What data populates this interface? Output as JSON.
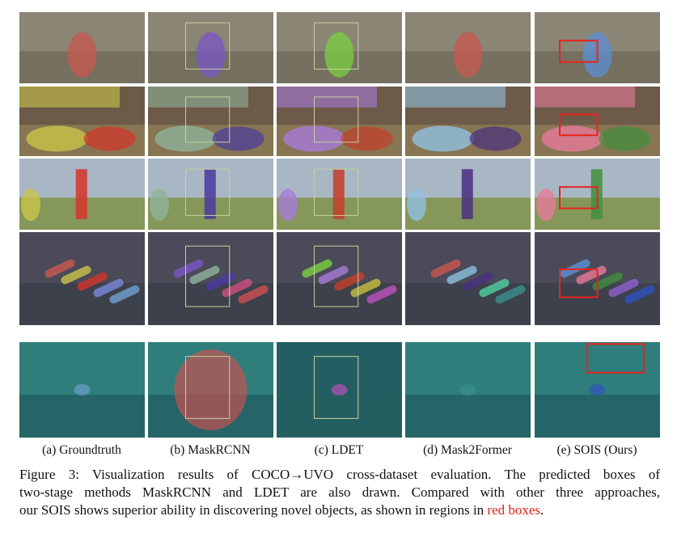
{
  "figure": {
    "columns": [
      "(a) Groundtruth",
      "(b) MaskRCNN",
      "(c) LDET",
      "(d) Mask2Former",
      "(e) SOIS (Ours)"
    ],
    "caption": {
      "lines": [
        "Figure 3: Visualization results of COCO→UVO cross-dataset evaluation. The predicted boxes of",
        "two-stage methods MaskRCNN and LDET are also drawn. Compared with other three approaches,"
      ],
      "last": "our SOIS shows superior ability in discovering novel objects, as shown in regions in ",
      "highlight": "red boxes",
      "end": "."
    }
  }
}
